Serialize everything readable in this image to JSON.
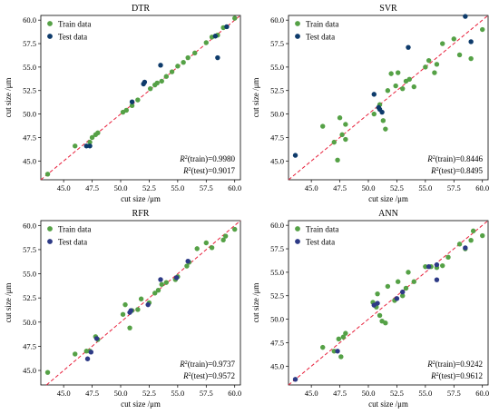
{
  "figure": {
    "xlabel": "cut size /μm",
    "ylabel": "cut size /μm",
    "legend_train": "Train data",
    "legend_test": "Test data",
    "train_color": "#55a146",
    "test_colors": [
      "#0e3b6b",
      "#0e3b6b",
      "#2d3a86",
      "#2d3a86"
    ],
    "line_color": "#e8213c"
  },
  "chart_data": [
    {
      "type": "scatter",
      "title": "DTR",
      "xlim": [
        43,
        60.5
      ],
      "ylim": [
        43,
        60.5
      ],
      "xticks": [
        45.0,
        47.5,
        50.0,
        52.5,
        55.0,
        57.5,
        60.0
      ],
      "yticks": [
        45.0,
        47.5,
        50.0,
        52.5,
        55.0,
        57.5,
        60.0
      ],
      "tick_labels": [
        "45.0",
        "47.5",
        "50.0",
        "52.5",
        "55.0",
        "57.5",
        "60.0"
      ],
      "legend_position": "top-left",
      "reference_line": "y = x",
      "metrics": [
        {
          "label": "(train)=0.9980",
          "value": 0.998
        },
        {
          "label": "(test)=0.9017",
          "value": 0.9017
        }
      ],
      "series": [
        {
          "name": "Train data",
          "points": [
            [
              43.6,
              43.6
            ],
            [
              46.0,
              46.6
            ],
            [
              47.3,
              47.0
            ],
            [
              47.5,
              47.5
            ],
            [
              47.8,
              47.8
            ],
            [
              48.0,
              48.0
            ],
            [
              50.2,
              50.2
            ],
            [
              50.5,
              50.4
            ],
            [
              51.0,
              50.9
            ],
            [
              51.5,
              51.5
            ],
            [
              52.6,
              52.7
            ],
            [
              53.0,
              53.1
            ],
            [
              53.2,
              53.3
            ],
            [
              53.6,
              53.5
            ],
            [
              54.0,
              54.0
            ],
            [
              54.5,
              54.5
            ],
            [
              55.0,
              55.1
            ],
            [
              55.5,
              55.5
            ],
            [
              55.9,
              56.0
            ],
            [
              56.5,
              56.5
            ],
            [
              57.5,
              57.6
            ],
            [
              58.0,
              58.2
            ],
            [
              58.5,
              58.4
            ],
            [
              59.0,
              59.2
            ],
            [
              60.0,
              60.2
            ]
          ]
        },
        {
          "name": "Test data",
          "points": [
            [
              47.0,
              46.6
            ],
            [
              47.3,
              46.6
            ],
            [
              51.0,
              51.3
            ],
            [
              52.0,
              53.2
            ],
            [
              52.1,
              53.4
            ],
            [
              53.5,
              55.2
            ],
            [
              58.5,
              56.0
            ],
            [
              58.3,
              58.3
            ],
            [
              59.3,
              59.3
            ]
          ]
        }
      ]
    },
    {
      "type": "scatter",
      "title": "SVR",
      "xlim": [
        43,
        60.5
      ],
      "ylim": [
        43,
        60.5
      ],
      "xticks": [
        45.0,
        47.5,
        50.0,
        52.5,
        55.0,
        57.5,
        60.0
      ],
      "yticks": [
        45.0,
        47.5,
        50.0,
        52.5,
        55.0,
        57.5,
        60.0
      ],
      "tick_labels": [
        "45.0",
        "47.5",
        "50.0",
        "52.5",
        "55.0",
        "57.5",
        "60.0"
      ],
      "legend_position": "top-left",
      "reference_line": "y = x",
      "metrics": [
        {
          "label": "(train)=0.8446",
          "value": 0.8446
        },
        {
          "label": "(test)=0.8495",
          "value": 0.8495
        }
      ],
      "series": [
        {
          "name": "Train data",
          "points": [
            [
              46.0,
              48.7
            ],
            [
              47.0,
              47.0
            ],
            [
              47.3,
              45.1
            ],
            [
              47.5,
              49.6
            ],
            [
              47.7,
              47.8
            ],
            [
              48.0,
              48.9
            ],
            [
              48.0,
              47.3
            ],
            [
              50.5,
              50.0
            ],
            [
              51.0,
              51.0
            ],
            [
              51.3,
              49.3
            ],
            [
              51.5,
              48.4
            ],
            [
              51.7,
              52.5
            ],
            [
              52.0,
              54.3
            ],
            [
              52.4,
              53.0
            ],
            [
              52.6,
              54.4
            ],
            [
              53.0,
              52.7
            ],
            [
              53.3,
              53.5
            ],
            [
              53.6,
              53.7
            ],
            [
              54.0,
              52.9
            ],
            [
              55.0,
              55.0
            ],
            [
              55.3,
              55.7
            ],
            [
              55.8,
              54.4
            ],
            [
              56.0,
              55.3
            ],
            [
              56.5,
              57.5
            ],
            [
              57.5,
              58.0
            ],
            [
              58.0,
              56.3
            ],
            [
              59.0,
              55.9
            ],
            [
              60.0,
              59.0
            ]
          ]
        },
        {
          "name": "Test data",
          "points": [
            [
              43.6,
              45.6
            ],
            [
              50.5,
              52.1
            ],
            [
              50.9,
              50.7
            ],
            [
              51.0,
              50.5
            ],
            [
              51.2,
              50.2
            ],
            [
              53.5,
              57.1
            ],
            [
              58.5,
              60.4
            ],
            [
              59.0,
              57.7
            ]
          ]
        }
      ]
    },
    {
      "type": "scatter",
      "title": "RFR",
      "xlim": [
        43,
        60.5
      ],
      "ylim": [
        43.5,
        60.5
      ],
      "xticks": [
        45.0,
        47.5,
        50.0,
        52.5,
        55.0,
        57.5,
        60.0
      ],
      "yticks": [
        45.0,
        47.5,
        50.0,
        52.5,
        55.0,
        57.5,
        60.0
      ],
      "tick_labels": [
        "45.0",
        "47.5",
        "50.0",
        "52.5",
        "55.0",
        "57.5",
        "60.0"
      ],
      "legend_position": "top-left",
      "reference_line": "y = x",
      "metrics": [
        {
          "label": "(train)=0.9737",
          "value": 0.9737
        },
        {
          "label": "(test)=0.9572",
          "value": 0.9572
        }
      ],
      "series": [
        {
          "name": "Train data",
          "points": [
            [
              43.6,
              44.8
            ],
            [
              46.0,
              46.7
            ],
            [
              47.0,
              47.0
            ],
            [
              47.3,
              47.0
            ],
            [
              47.8,
              48.5
            ],
            [
              48.0,
              48.2
            ],
            [
              50.2,
              50.8
            ],
            [
              50.4,
              51.8
            ],
            [
              50.8,
              49.4
            ],
            [
              51.0,
              51.2
            ],
            [
              51.5,
              51.3
            ],
            [
              51.8,
              52.4
            ],
            [
              52.5,
              52.0
            ],
            [
              53.0,
              53.0
            ],
            [
              53.3,
              53.3
            ],
            [
              53.6,
              53.9
            ],
            [
              54.0,
              54.1
            ],
            [
              54.8,
              54.4
            ],
            [
              55.0,
              54.7
            ],
            [
              55.8,
              55.8
            ],
            [
              56.0,
              56.2
            ],
            [
              56.7,
              57.6
            ],
            [
              57.5,
              58.2
            ],
            [
              58.0,
              57.7
            ],
            [
              59.0,
              58.5
            ],
            [
              59.2,
              58.9
            ],
            [
              60.0,
              59.6
            ]
          ]
        },
        {
          "name": "Test data",
          "points": [
            [
              47.1,
              46.2
            ],
            [
              47.4,
              46.9
            ],
            [
              47.9,
              48.3
            ],
            [
              50.8,
              51.0
            ],
            [
              50.9,
              51.2
            ],
            [
              52.4,
              51.8
            ],
            [
              53.5,
              54.4
            ],
            [
              54.9,
              54.6
            ],
            [
              55.9,
              56.3
            ]
          ]
        }
      ]
    },
    {
      "type": "scatter",
      "title": "ANN",
      "xlim": [
        43,
        60.5
      ],
      "ylim": [
        43,
        60.5
      ],
      "xticks": [
        45.0,
        47.5,
        50.0,
        52.5,
        55.0,
        57.5,
        60.0
      ],
      "yticks": [
        45.0,
        47.5,
        50.0,
        52.5,
        55.0,
        57.5,
        60.0
      ],
      "tick_labels": [
        "45.0",
        "47.5",
        "50.0",
        "52.5",
        "55.0",
        "57.5",
        "60.0"
      ],
      "legend_position": "top-left",
      "reference_line": "y = x",
      "metrics": [
        {
          "label": "(train)=0.9242",
          "value": 0.9242
        },
        {
          "label": "(test)=0.9612",
          "value": 0.9612
        }
      ],
      "series": [
        {
          "name": "Train data",
          "points": [
            [
              46.0,
              47.0
            ],
            [
              47.0,
              46.6
            ],
            [
              47.4,
              47.9
            ],
            [
              47.6,
              46.0
            ],
            [
              47.8,
              48.1
            ],
            [
              48.0,
              48.5
            ],
            [
              50.4,
              51.8
            ],
            [
              50.7,
              51.3
            ],
            [
              50.8,
              52.7
            ],
            [
              51.0,
              50.4
            ],
            [
              51.2,
              49.8
            ],
            [
              51.5,
              49.6
            ],
            [
              51.7,
              53.5
            ],
            [
              52.3,
              52.0
            ],
            [
              52.6,
              54.0
            ],
            [
              53.0,
              52.5
            ],
            [
              53.3,
              53.3
            ],
            [
              53.5,
              55.0
            ],
            [
              54.0,
              54.0
            ],
            [
              55.0,
              55.6
            ],
            [
              55.5,
              55.6
            ],
            [
              56.0,
              55.5
            ],
            [
              56.5,
              55.7
            ],
            [
              57.0,
              56.6
            ],
            [
              58.0,
              58.0
            ],
            [
              58.5,
              57.5
            ],
            [
              59.0,
              58.4
            ],
            [
              60.0,
              58.9
            ],
            [
              59.2,
              59.4
            ]
          ]
        },
        {
          "name": "Test data",
          "points": [
            [
              43.6,
              43.6
            ],
            [
              47.3,
              46.6
            ],
            [
              50.5,
              51.5
            ],
            [
              50.8,
              51.7
            ],
            [
              52.5,
              52.2
            ],
            [
              53.0,
              52.9
            ],
            [
              55.3,
              55.6
            ],
            [
              56.0,
              54.2
            ],
            [
              56.0,
              55.8
            ],
            [
              58.5,
              57.6
            ]
          ]
        }
      ]
    }
  ]
}
